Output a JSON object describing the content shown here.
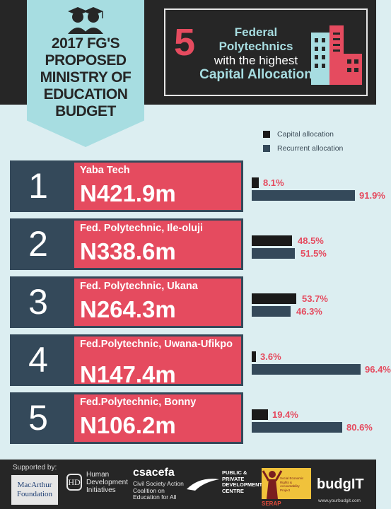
{
  "title": "2017 FG'S PROPOSED MINISTRY OF EDUCATION BUDGET",
  "headline": {
    "number": "5",
    "line1": "Federal",
    "line2": "Polytechnics",
    "line3": "with the highest",
    "line4": "Capital Allocation"
  },
  "legend": [
    {
      "label": "Capital allocation",
      "color": "#1a1a1a"
    },
    {
      "label": "Recurrent allocation",
      "color": "#34495a"
    }
  ],
  "colors": {
    "accent": "#e54b5f",
    "panel": "#34495a",
    "capital": "#1a1a1a",
    "recurrent": "#34495a"
  },
  "chart_data": {
    "type": "bar",
    "categories": [
      "Yaba Tech",
      "Fed. Polytechnic, Ile-oluji",
      "Fed. Polytechnic, Ukana",
      "Fed.Polytechnic, Uwana-Ufikpo",
      "Fed.Polytechnic, Bonny"
    ],
    "ranks": [
      "1",
      "2",
      "3",
      "4",
      "5"
    ],
    "amounts": [
      "N421.9m",
      "N338.6m",
      "N264.3m",
      "N147.4m",
      "N106.2m"
    ],
    "series": [
      {
        "name": "Capital allocation",
        "values": [
          8.1,
          48.5,
          53.7,
          3.6,
          19.4
        ],
        "labels": [
          "8.1%",
          "48.5%",
          "53.7%",
          "3.6%",
          "19.4%"
        ]
      },
      {
        "name": "Recurrent allocation",
        "values": [
          91.9,
          51.5,
          46.3,
          96.4,
          80.6
        ],
        "labels": [
          "91.9%",
          "51.5%",
          "46.3%",
          "96.4%",
          "80.6%"
        ]
      }
    ],
    "ylim": [
      0,
      100
    ]
  },
  "footer": {
    "supported_by": "Supported by:",
    "macarthur_line1": "MacArthur",
    "macarthur_line2": "Foundation",
    "hdi_mark": "HD",
    "hdi_line1": "Human",
    "hdi_line2": "Development",
    "hdi_line3": "Initiatives",
    "csacefa": "csacefa",
    "csacefa_line1": "Civil Society Action",
    "csacefa_line2": "Coalition on",
    "csacefa_line3": "Education for All",
    "ppdc_line1": "PUBLIC &",
    "ppdc_line2": "PRIVATE",
    "ppdc_line3": "DEVELOPMENT",
    "ppdc_line4": "CENTRE",
    "serap": "SERAP",
    "serap_sub": "Social Economic Rights & Accountability Project",
    "budgit": "budgIT",
    "budgit_url": "www.yourbudgit.com"
  }
}
